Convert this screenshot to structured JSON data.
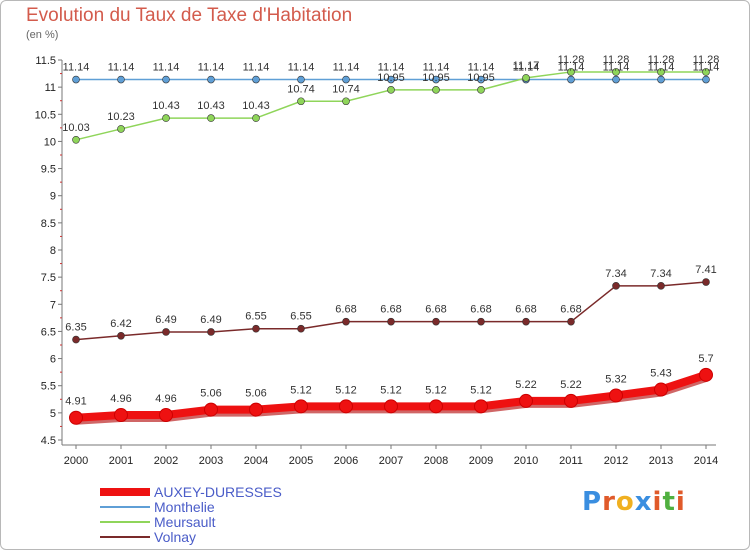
{
  "header": {
    "title": "Evolution du Taux de Taxe d'Habitation",
    "subtitle": "(en %)"
  },
  "logo": {
    "text": "Proxiti",
    "letters": [
      {
        "ch": "P",
        "color": "#3a8ee0"
      },
      {
        "ch": "r",
        "color": "#e05a2a"
      },
      {
        "ch": "o",
        "color": "#f0b020"
      },
      {
        "ch": "x",
        "color": "#3a8ee0"
      },
      {
        "ch": "i",
        "color": "#e05a2a"
      },
      {
        "ch": "t",
        "color": "#50b040"
      },
      {
        "ch": "i",
        "color": "#e05a2a"
      }
    ]
  },
  "chart_data": {
    "type": "line",
    "title": "Evolution du Taux de Taxe d'Habitation",
    "ylabel": "(en %)",
    "xlabel": "",
    "categories": [
      "2000",
      "2001",
      "2002",
      "2003",
      "2004",
      "2005",
      "2006",
      "2007",
      "2008",
      "2009",
      "2010",
      "2011",
      "2012",
      "2013",
      "2014"
    ],
    "ylim": [
      4.5,
      11.5
    ],
    "yticks": [
      "4.5",
      "5",
      "5.5",
      "6",
      "6.5",
      "7",
      "7.5",
      "8",
      "8.5",
      "9",
      "9.5",
      "10",
      "10.5",
      "11",
      "11.5"
    ],
    "grid": false,
    "legend_position": "bottom-left",
    "series": [
      {
        "name": "AUXEY-DURESSES",
        "color": "#ee1111",
        "values": [
          4.91,
          4.96,
          4.96,
          5.06,
          5.06,
          5.12,
          5.12,
          5.12,
          5.12,
          5.12,
          5.22,
          5.22,
          5.32,
          5.43,
          5.7
        ],
        "labels": [
          "4.91",
          "4.96",
          "4.96",
          "5.06",
          "5.06",
          "5.12",
          "5.12",
          "5.12",
          "5.12",
          "5.12",
          "5.22",
          "5.22",
          "5.32",
          "5.43",
          "5.7"
        ]
      },
      {
        "name": "Monthelie",
        "color": "#5f9fd6",
        "values": [
          11.14,
          11.14,
          11.14,
          11.14,
          11.14,
          11.14,
          11.14,
          11.14,
          11.14,
          11.14,
          11.14,
          11.14,
          11.14,
          11.14,
          11.14
        ],
        "labels": [
          "11.14",
          "11.14",
          "11.14",
          "11.14",
          "11.14",
          "11.14",
          "11.14",
          "11.14",
          "11.14",
          "11.14",
          "11.14",
          "11.14",
          "11.14",
          "11.14",
          "11.14"
        ]
      },
      {
        "name": "Meursault",
        "color": "#8fd55a",
        "values": [
          10.03,
          10.23,
          10.43,
          10.43,
          10.43,
          10.74,
          10.74,
          10.95,
          10.95,
          10.95,
          11.17,
          11.28,
          11.28,
          11.28,
          11.28
        ],
        "labels": [
          "10.03",
          "10.23",
          "10.43",
          "10.43",
          "10.43",
          "10.74",
          "10.74",
          "10.95",
          "10.95",
          "10.95",
          "11.17",
          "11.28",
          "11.28",
          "11.28",
          "11.28"
        ]
      },
      {
        "name": "Volnay",
        "color": "#7a2a2a",
        "values": [
          6.35,
          6.42,
          6.49,
          6.49,
          6.55,
          6.55,
          6.68,
          6.68,
          6.68,
          6.68,
          6.68,
          6.68,
          7.34,
          7.34,
          7.41
        ],
        "labels": [
          "6.35",
          "6.42",
          "6.49",
          "6.49",
          "6.55",
          "6.55",
          "6.68",
          "6.68",
          "6.68",
          "6.68",
          "6.68",
          "6.68",
          "7.34",
          "7.34",
          "7.41"
        ]
      }
    ]
  }
}
